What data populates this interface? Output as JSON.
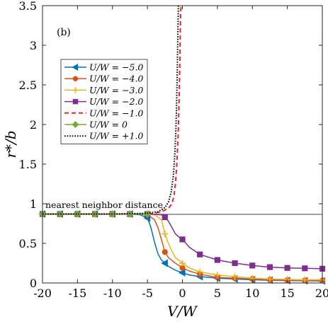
{
  "chart_data": {
    "type": "line",
    "panel_label": "(b)",
    "xlabel": "V/W",
    "ylabel": "r*/b",
    "xlim": [
      -20,
      20
    ],
    "ylim": [
      0,
      3.5
    ],
    "xticks": [
      -20,
      -15,
      -10,
      -5,
      0,
      5,
      10,
      15,
      20
    ],
    "xtick_labels": [
      "-20",
      "-15",
      "-10",
      "-5",
      "0",
      "5",
      "10",
      "15",
      "20"
    ],
    "yticks": [
      0,
      0.5,
      1,
      1.5,
      2,
      2.5,
      3,
      3.5
    ],
    "ytick_labels": [
      "0",
      "0.5",
      "1",
      "1.5",
      "2",
      "2.5",
      "3",
      "3.5"
    ],
    "grid": false,
    "legend_position": "upper-left",
    "reference_line": {
      "y": 0.866,
      "label": "nearest neighbor distance",
      "color": "#808080"
    },
    "series": [
      {
        "name": "U/W = −5.0",
        "color": "#0072BD",
        "marker": "triangle-left",
        "dash": "solid",
        "x": [
          -20,
          -17.5,
          -15,
          -12.5,
          -10,
          -7.5,
          -6,
          -5,
          -4.5,
          -4,
          -3.5,
          -3,
          -2.5,
          -2,
          -1,
          0,
          1,
          2.5,
          5,
          7.5,
          10,
          12.5,
          15,
          17.5,
          20
        ],
        "y": [
          0.87,
          0.87,
          0.87,
          0.87,
          0.87,
          0.87,
          0.86,
          0.82,
          0.7,
          0.52,
          0.37,
          0.29,
          0.25,
          0.21,
          0.16,
          0.13,
          0.1,
          0.08,
          0.06,
          0.05,
          0.04,
          0.035,
          0.03,
          0.028,
          0.025
        ],
        "marker_x": [
          -20,
          -17.5,
          -15,
          -12.5,
          -10,
          -7.5,
          -5,
          -2.5,
          0,
          2.5,
          5,
          7.5,
          10,
          12.5,
          15,
          17.5,
          20
        ]
      },
      {
        "name": "U/W = −4.0",
        "color": "#D95319",
        "marker": "circle",
        "dash": "solid",
        "x": [
          -20,
          -17.5,
          -15,
          -12.5,
          -10,
          -7.5,
          -6,
          -5,
          -4,
          -3.5,
          -3,
          -2.5,
          -2,
          -1,
          0,
          1,
          2.5,
          5,
          7.5,
          10,
          12.5,
          15,
          17.5,
          20
        ],
        "y": [
          0.87,
          0.87,
          0.87,
          0.87,
          0.87,
          0.87,
          0.87,
          0.86,
          0.8,
          0.7,
          0.55,
          0.39,
          0.32,
          0.25,
          0.19,
          0.15,
          0.11,
          0.07,
          0.06,
          0.05,
          0.04,
          0.035,
          0.032,
          0.03
        ],
        "marker_x": [
          -20,
          -17.5,
          -15,
          -12.5,
          -10,
          -7.5,
          -5,
          -2.5,
          0,
          2.5,
          5,
          7.5,
          10,
          12.5,
          15,
          17.5,
          20
        ]
      },
      {
        "name": "U/W = −3.0",
        "color": "#EDB120",
        "marker": "plus",
        "dash": "solid",
        "x": [
          -20,
          -17.5,
          -15,
          -12.5,
          -10,
          -7.5,
          -5,
          -4,
          -3,
          -2.5,
          -2,
          -1.5,
          -1,
          0,
          1,
          2.5,
          5,
          7.5,
          10,
          12.5,
          15,
          17.5,
          20
        ],
        "y": [
          0.87,
          0.87,
          0.87,
          0.87,
          0.87,
          0.87,
          0.87,
          0.86,
          0.8,
          0.62,
          0.5,
          0.4,
          0.32,
          0.25,
          0.19,
          0.14,
          0.1,
          0.08,
          0.06,
          0.05,
          0.045,
          0.04,
          0.04
        ],
        "marker_x": [
          -20,
          -17.5,
          -15,
          -12.5,
          -10,
          -7.5,
          -5,
          -2.5,
          0,
          2.5,
          5,
          7.5,
          10,
          12.5,
          15,
          17.5,
          20
        ]
      },
      {
        "name": "U/W = −2.0",
        "color": "#7E2F8E",
        "marker": "square",
        "dash": "solid",
        "x": [
          -20,
          -17.5,
          -15,
          -12.5,
          -10,
          -7.5,
          -5,
          -3,
          -2.5,
          -2,
          -1.5,
          -1,
          -0.5,
          0,
          1,
          2.5,
          5,
          7.5,
          10,
          12.5,
          15,
          17.5,
          20
        ],
        "y": [
          0.87,
          0.87,
          0.87,
          0.87,
          0.87,
          0.87,
          0.87,
          0.86,
          0.83,
          0.78,
          0.7,
          0.62,
          0.58,
          0.55,
          0.45,
          0.36,
          0.29,
          0.25,
          0.22,
          0.2,
          0.19,
          0.185,
          0.18
        ],
        "marker_x": [
          -20,
          -17.5,
          -15,
          -12.5,
          -10,
          -7.5,
          -5,
          -2.5,
          0,
          2.5,
          5,
          7.5,
          10,
          12.5,
          15,
          17.5,
          20
        ]
      },
      {
        "name": "U/W = −1.0",
        "color": "#E8242A",
        "marker": "none",
        "dash": "dashed",
        "x": [
          -20,
          -10,
          -5,
          -4,
          -3,
          -2,
          -1.5,
          -1.2,
          -1,
          -0.8,
          -0.6,
          -0.45,
          -0.35,
          -0.3,
          -0.25,
          -0.2
        ],
        "y": [
          0.87,
          0.87,
          0.87,
          0.88,
          0.9,
          0.94,
          1.0,
          1.1,
          1.25,
          1.5,
          1.9,
          2.4,
          2.9,
          3.2,
          3.4,
          3.5
        ]
      },
      {
        "name": "U/W = 0",
        "color": "#77AC30",
        "marker": "diamond",
        "dash": "solid",
        "x": [
          -20,
          -17.5,
          -15,
          -12.5,
          -10,
          -7.5,
          -5
        ],
        "y": [
          0.87,
          0.87,
          0.87,
          0.87,
          0.87,
          0.87,
          0.87
        ],
        "marker_x": [
          -20,
          -17.5,
          -15,
          -12.5,
          -10,
          -7.5,
          -5
        ]
      },
      {
        "name": "U/W = +1.0",
        "color": "#000000",
        "marker": "none",
        "dash": "dotted",
        "x": [
          -20,
          -10,
          -5,
          -3.5,
          -2.5,
          -2,
          -1.6,
          -1.3,
          -1.1,
          -0.95,
          -0.85,
          -0.75,
          -0.68,
          -0.62,
          -0.58
        ],
        "y": [
          0.87,
          0.87,
          0.88,
          0.9,
          0.95,
          1.02,
          1.15,
          1.35,
          1.6,
          1.9,
          2.2,
          2.6,
          3.0,
          3.3,
          3.5
        ]
      }
    ]
  }
}
